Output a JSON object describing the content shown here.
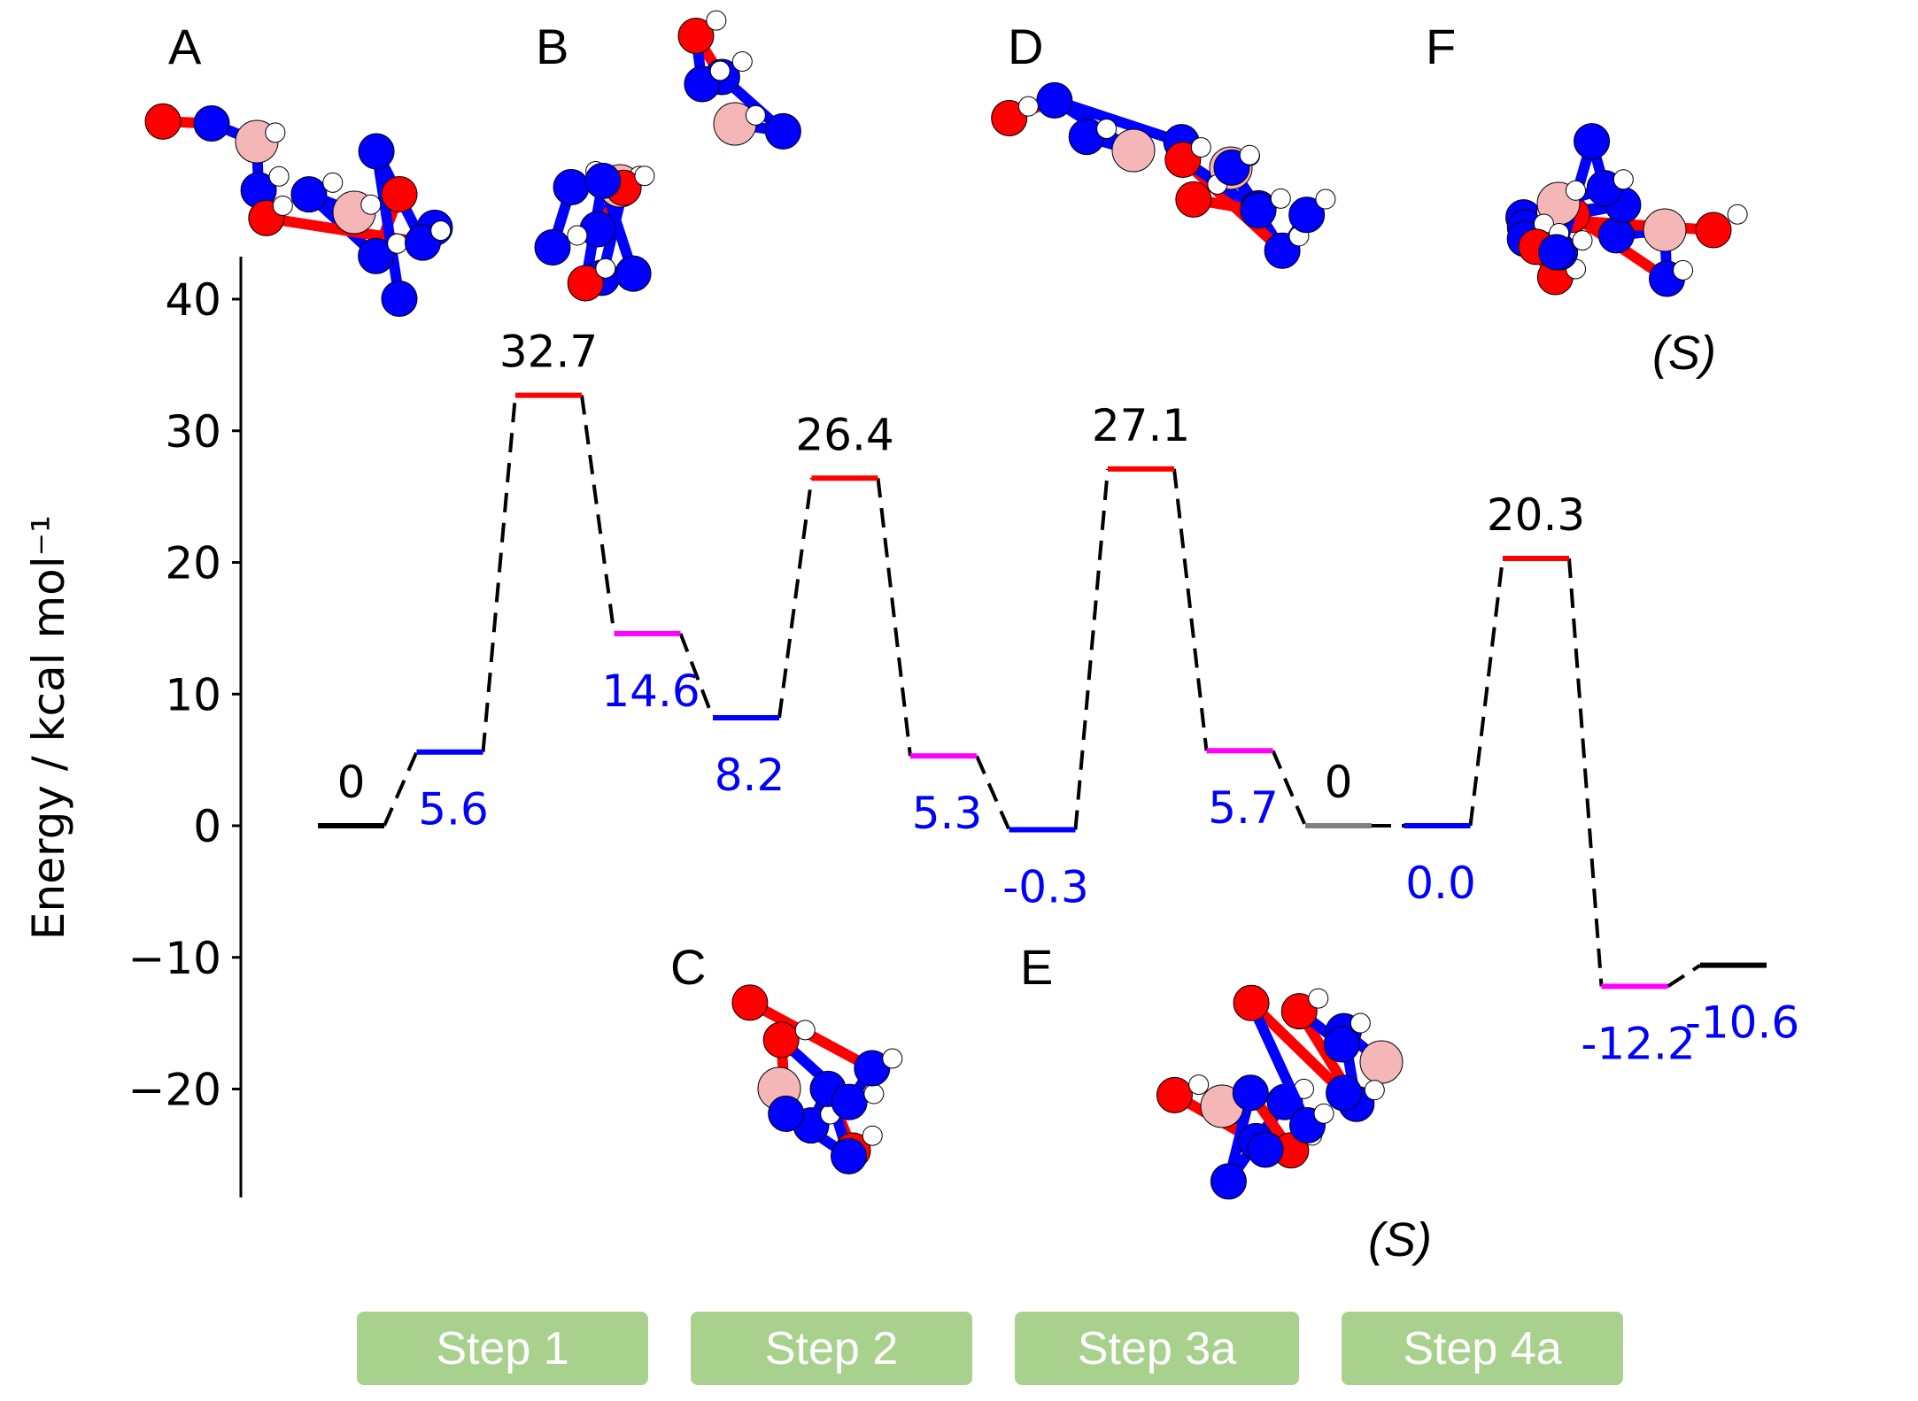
{
  "chart_data": {
    "type": "line",
    "subtype": "energy-profile",
    "ylabel": "Energy / kcal mol⁻¹",
    "ylim": [
      -28,
      43
    ],
    "yticks": [
      40,
      30,
      20,
      10,
      0,
      -10,
      -20
    ],
    "ytick_labels": [
      "40",
      "30",
      "20",
      "10",
      "0",
      "−10",
      "−20"
    ],
    "grid": false,
    "levels": [
      {
        "energy": 0,
        "label": "0",
        "color": "#000000",
        "label_position": "above"
      },
      {
        "energy": 5.6,
        "label": "5.6",
        "color": "#0000ff",
        "label_position": "below"
      },
      {
        "energy": 32.7,
        "label": "32.7",
        "color": "#ff0000",
        "label_position": "above"
      },
      {
        "energy": 14.6,
        "label": "14.6",
        "color": "#ff00ff",
        "label_position": "below"
      },
      {
        "energy": 8.2,
        "label": "8.2",
        "color": "#0000ff",
        "label_position": "below"
      },
      {
        "energy": 26.4,
        "label": "26.4",
        "color": "#ff0000",
        "label_position": "above"
      },
      {
        "energy": 5.3,
        "label": "5.3",
        "color": "#ff00ff",
        "label_position": "below"
      },
      {
        "energy": -0.3,
        "label": "-0.3",
        "color": "#0000ff",
        "label_position": "below"
      },
      {
        "energy": 27.1,
        "label": "27.1",
        "color": "#ff0000",
        "label_position": "above"
      },
      {
        "energy": 5.7,
        "label": "5.7",
        "color": "#ff00ff",
        "label_position": "below"
      },
      {
        "energy": 0,
        "label": "0",
        "color": "#808080",
        "label_position": "above"
      },
      {
        "energy": 0.0,
        "label": "0.0",
        "color": "#0000ff",
        "label_position": "below"
      },
      {
        "energy": 20.3,
        "label": "20.3",
        "color": "#ff0000",
        "label_position": "above"
      },
      {
        "energy": -12.2,
        "label": "-12.2",
        "color": "#ff00ff",
        "label_position": "below"
      },
      {
        "energy": -10.6,
        "label": "-10.6",
        "color": "#000000",
        "label_position": "below"
      }
    ],
    "label_colors": {
      "above": "#000000",
      "below": "#0000ff"
    },
    "connector_style": "dashed"
  },
  "structures": {
    "letters": [
      "A",
      "B",
      "C",
      "D",
      "E",
      "F"
    ],
    "stereo_labels": [
      "(S)",
      "(S)"
    ],
    "atom_colors": {
      "carbon": "#0000ff",
      "oxygen": "#ff0000",
      "hydrogen": "#ffffff",
      "boron": "#f4b6b6"
    }
  },
  "steps": [
    {
      "label": "Step 1",
      "color": "#a9d18e"
    },
    {
      "label": "Step 2",
      "color": "#a9d18e"
    },
    {
      "label": "Step 3a",
      "color": "#a9d18e"
    },
    {
      "label": "Step 4a",
      "color": "#a9d18e"
    }
  ]
}
